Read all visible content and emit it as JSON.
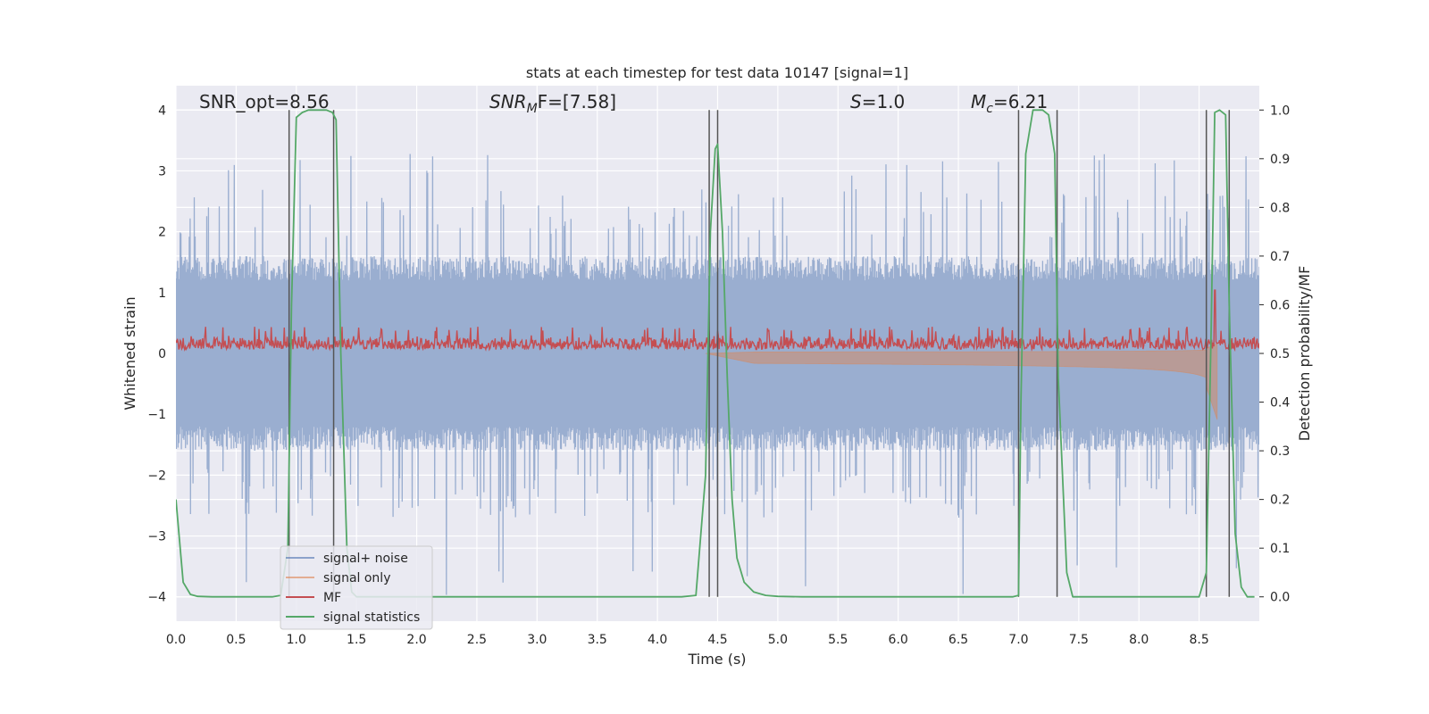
{
  "chart_data": {
    "type": "line",
    "title": "stats at each timestep for test data 10147 [signal=1]",
    "xlabel": "Time (s)",
    "ylabel": "Whitened strain",
    "y2label": "Detection probability/MF",
    "xlim": [
      0.0,
      9.0
    ],
    "ylim": [
      -4.4,
      4.4
    ],
    "y2lim": [
      -0.05,
      1.05
    ],
    "x_ticks": [
      0.0,
      0.5,
      1.0,
      1.5,
      2.0,
      2.5,
      3.0,
      3.5,
      4.0,
      4.5,
      5.0,
      5.5,
      6.0,
      6.5,
      7.0,
      7.5,
      8.0,
      8.5
    ],
    "x_tick_labels": [
      "0.0",
      "0.5",
      "1.0",
      "1.5",
      "2.0",
      "2.5",
      "3.0",
      "3.5",
      "4.0",
      "4.5",
      "5.0",
      "5.5",
      "6.0",
      "6.5",
      "7.0",
      "7.5",
      "8.0",
      "8.5"
    ],
    "y_ticks": [
      -4,
      -3,
      -2,
      -1,
      0,
      1,
      2,
      3,
      4
    ],
    "y_tick_labels": [
      "−4",
      "−3",
      "−2",
      "−1",
      "0",
      "1",
      "2",
      "3",
      "4"
    ],
    "y2_ticks": [
      0.0,
      0.1,
      0.2,
      0.3,
      0.4,
      0.5,
      0.6,
      0.7,
      0.8,
      0.9,
      1.0
    ],
    "y2_tick_labels": [
      "0.0",
      "0.1",
      "0.2",
      "0.3",
      "0.4",
      "0.5",
      "0.6",
      "0.7",
      "0.8",
      "0.9",
      "1.0"
    ],
    "grid": true,
    "annotations": {
      "snr_opt": {
        "label": "SNR_opt=8.56"
      },
      "snr_mf": {
        "name": "SNR",
        "sub": "M",
        "suffix": "F=[7.58]"
      },
      "s": {
        "name": "S",
        "suffix": "=1.0"
      },
      "mc": {
        "name": "M",
        "sub": "c",
        "suffix": "=6.21"
      }
    },
    "legend": {
      "location": "lower-left",
      "items": [
        {
          "label": "signal+ noise",
          "color": "#4c72b0"
        },
        {
          "label": "signal only",
          "color": "#dd8452"
        },
        {
          "label": "MF",
          "color": "#c44e52"
        },
        {
          "label": "signal statistics",
          "color": "#55a868"
        }
      ]
    },
    "series": [
      {
        "name": "signal+ noise",
        "color": "#9aaed0",
        "axis": "left",
        "kind": "noise",
        "amplitude_envelope": 1.6,
        "peak_range": [
          -4.0,
          3.35
        ]
      },
      {
        "name": "signal only",
        "color": "#dd8452",
        "axis": "left",
        "kind": "chirp",
        "start": 4.4,
        "merger": 8.65,
        "peak": -1.1
      },
      {
        "name": "MF",
        "color": "#c44e52",
        "axis": "right",
        "kind": "noise",
        "baseline": 0.5,
        "range": [
          0.5,
          0.55
        ],
        "spike": {
          "x": 8.63,
          "y": 0.63
        }
      },
      {
        "name": "signal statistics",
        "color": "#55a868",
        "axis": "right",
        "x": [
          0.0,
          0.06,
          0.12,
          0.18,
          0.3,
          0.5,
          0.7,
          0.8,
          0.87,
          0.93,
          0.96,
          1.0,
          1.05,
          1.1,
          1.15,
          1.2,
          1.25,
          1.3,
          1.33,
          1.37,
          1.42,
          1.46,
          1.5,
          1.6,
          2.0,
          3.0,
          4.0,
          4.2,
          4.32,
          4.4,
          4.44,
          4.48,
          4.5,
          4.54,
          4.58,
          4.62,
          4.66,
          4.72,
          4.8,
          4.9,
          5.0,
          5.2,
          6.0,
          6.95,
          7.0,
          7.02,
          7.06,
          7.12,
          7.2,
          7.25,
          7.3,
          7.33,
          7.4,
          7.45,
          7.6,
          8.0,
          8.5,
          8.56,
          8.6,
          8.63,
          8.67,
          8.72,
          8.75,
          8.8,
          8.85,
          8.9,
          8.96
        ],
        "values": [
          0.2,
          0.03,
          0.005,
          0.001,
          0.0,
          0.0,
          0.0,
          0.0,
          0.003,
          0.1,
          0.6,
          0.985,
          0.995,
          1.0,
          1.0,
          1.0,
          1.0,
          0.995,
          0.98,
          0.5,
          0.1,
          0.01,
          0.0,
          0.0,
          0.0,
          0.0,
          0.0,
          0.0,
          0.003,
          0.25,
          0.75,
          0.92,
          0.93,
          0.75,
          0.45,
          0.2,
          0.08,
          0.03,
          0.01,
          0.003,
          0.001,
          0.0,
          0.0,
          0.0,
          0.003,
          0.4,
          0.91,
          1.0,
          1.0,
          0.99,
          0.91,
          0.45,
          0.05,
          0.0,
          0.0,
          0.0,
          0.0,
          0.05,
          0.55,
          0.995,
          1.0,
          0.99,
          0.6,
          0.13,
          0.02,
          0.0,
          0.0
        ]
      }
    ],
    "vertical_lines_x": [
      0.94,
      1.31,
      4.43,
      4.5,
      7.0,
      7.32,
      8.56,
      8.75
    ]
  }
}
